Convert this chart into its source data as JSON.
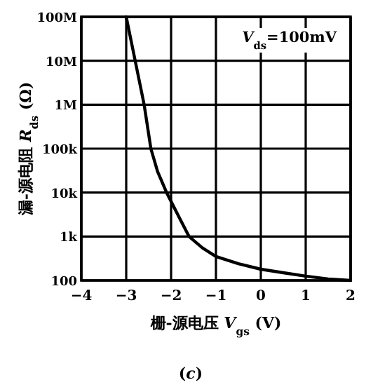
{
  "chart_data": {
    "type": "line",
    "xlabel": "栅-源电压 *V*$_{gs}$ (V)",
    "ylabel": "漏-源电阻 *R*$_{ds}$ (Ω)",
    "annotations": [
      "*V*$_{ds}$=100mV",
      "(*c*)"
    ],
    "x": [
      -3.0,
      -2.8,
      -2.6,
      -2.45,
      -2.3,
      -2.1,
      -1.8,
      -1.6,
      -1.3,
      -1.0,
      -0.5,
      0,
      0.5,
      1,
      1.5,
      2
    ],
    "series": [
      {
        "color": "#000000",
        "values": [
          100000000,
          10000000,
          1000000,
          100000,
          30000,
          10000,
          2500,
          1000,
          550,
          350,
          240,
          180,
          150,
          125,
          108,
          100
        ]
      }
    ],
    "log": "y",
    "xlim": [
      -4,
      2
    ],
    "ylim": [
      100,
      100000000
    ],
    "xticks": [
      -4,
      -3,
      -2,
      -1,
      0,
      1,
      2
    ],
    "yticks": [
      {
        "value": 100000000,
        "label": "100M"
      },
      {
        "value": 10000000,
        "label": "10M"
      },
      {
        "value": 1000000,
        "label": "1M"
      },
      {
        "value": 100000,
        "label": "100k"
      },
      {
        "value": 10000,
        "label": "10k"
      },
      {
        "value": 1000,
        "label": "1k"
      },
      100
    ],
    "grid": true,
    "marker": "none",
    "line_style": "solid"
  }
}
